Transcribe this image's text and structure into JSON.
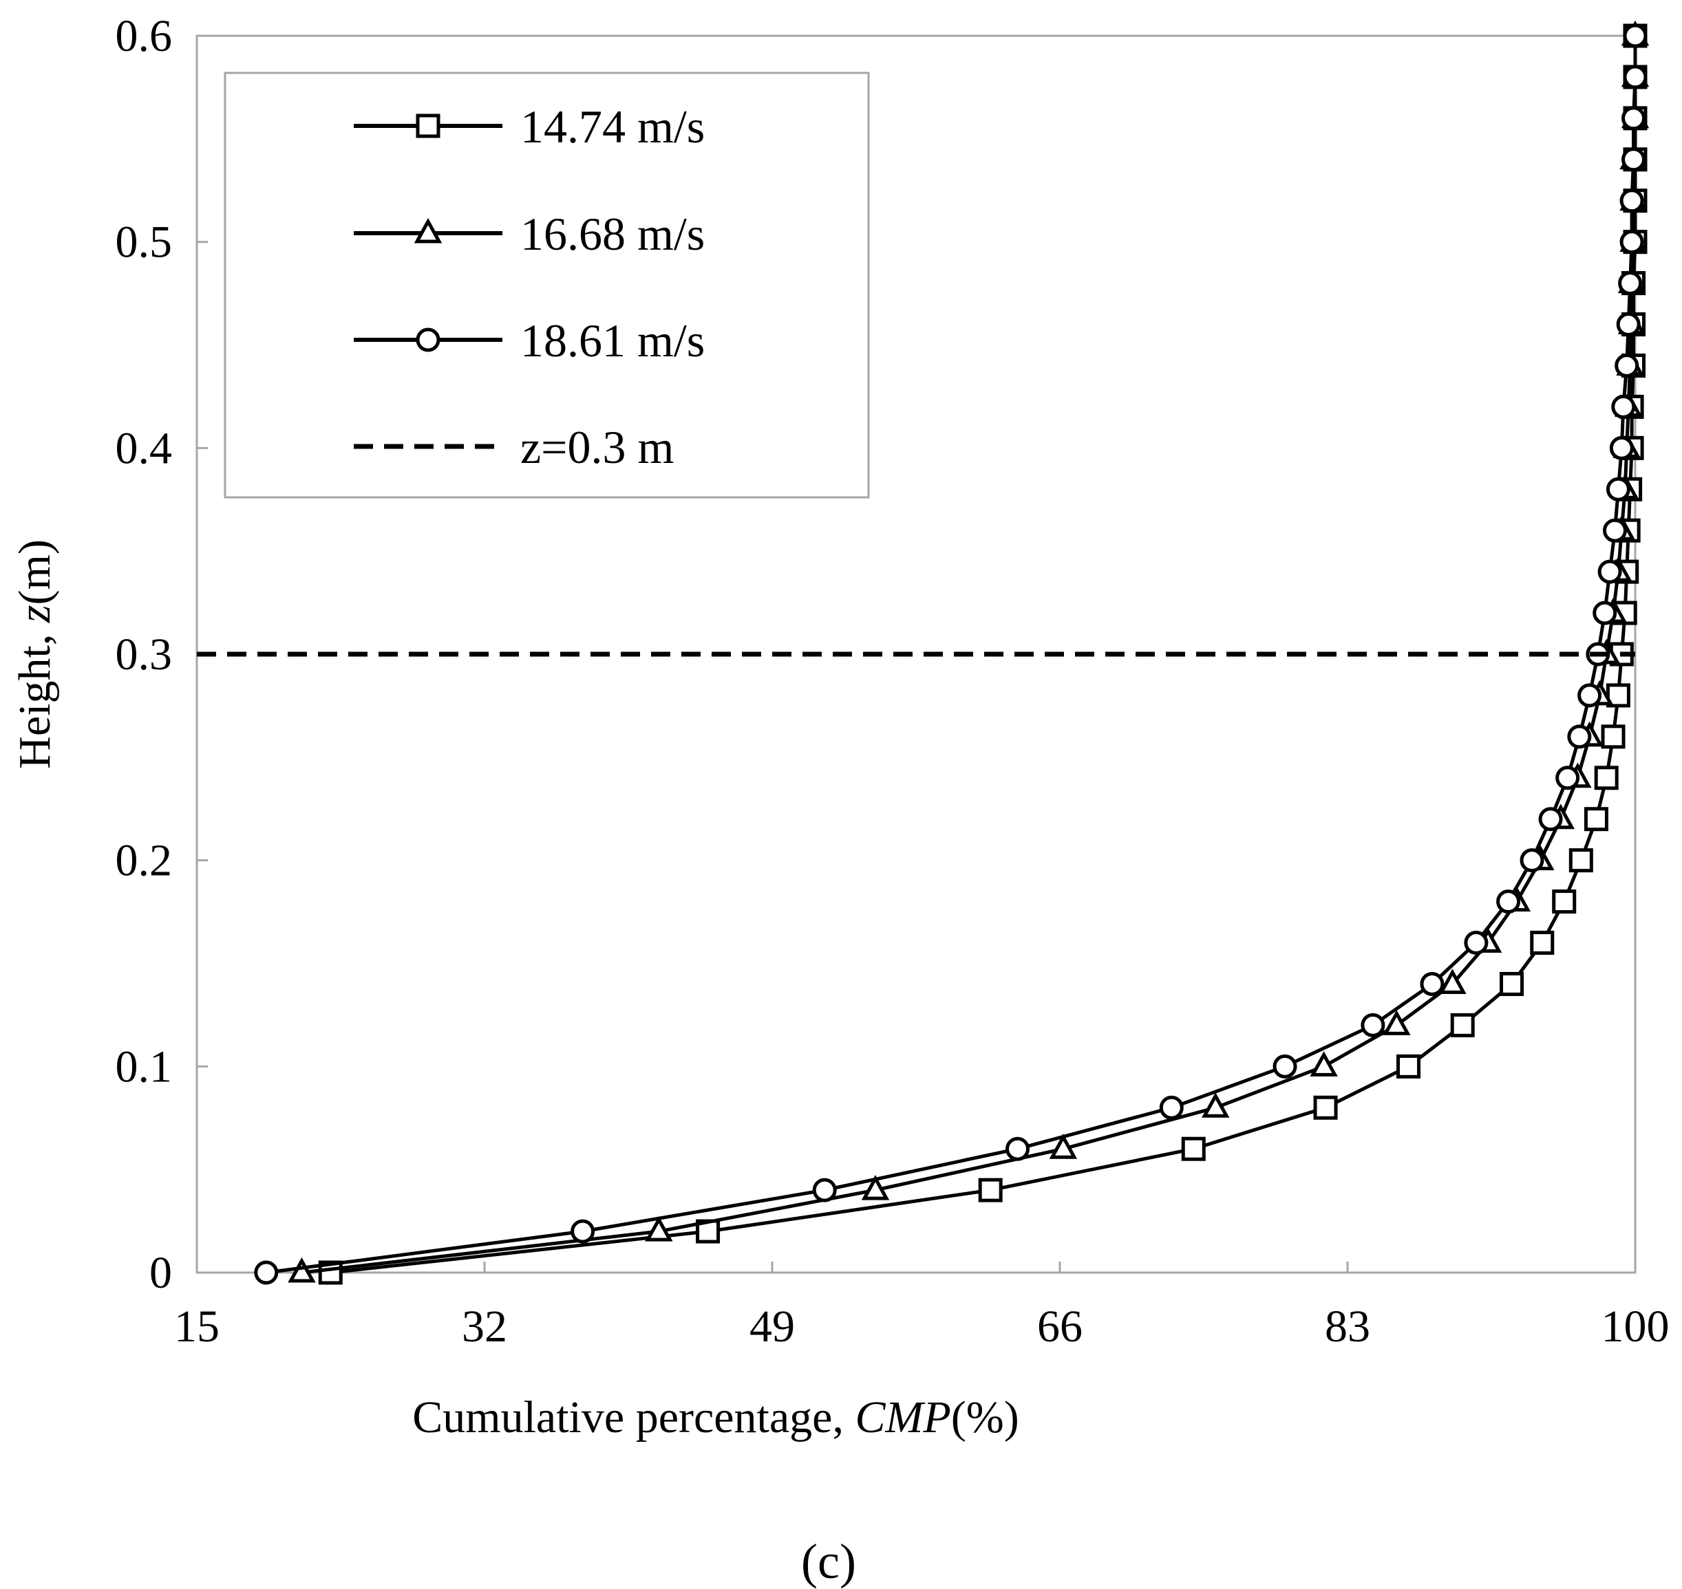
{
  "chart_data": {
    "type": "line",
    "title": "",
    "panel_label": "(c)",
    "xlabel": {
      "prefix": "Cumulative percentage, ",
      "symbol": "CMP",
      "suffix": "(%)"
    },
    "ylabel": {
      "prefix": "Height, ",
      "symbol": "z",
      "suffix": "(m)"
    },
    "xlim": [
      15,
      100
    ],
    "ylim": [
      0,
      0.6
    ],
    "xticks": [
      "15",
      "32",
      "49",
      "66",
      "83",
      "100"
    ],
    "yticks": [
      "0",
      "0.1",
      "0.2",
      "0.3",
      "0.4",
      "0.5",
      "0.6"
    ],
    "grid": false,
    "legend_position": "top-left",
    "series": [
      {
        "name": "14.74 m/s",
        "marker": "square",
        "color": "#000000",
        "x": [
          22.9,
          45.2,
          61.9,
          73.9,
          81.7,
          86.6,
          89.8,
          92.7,
          94.5,
          95.8,
          96.8,
          97.7,
          98.3,
          98.7,
          99.0,
          99.2,
          99.4,
          99.5,
          99.6,
          99.7,
          99.8,
          99.8,
          99.9,
          99.9,
          99.9,
          100.0,
          100.0,
          100.0,
          100.0,
          100.0,
          100.0
        ],
        "y": [
          0.0,
          0.02,
          0.04,
          0.06,
          0.08,
          0.1,
          0.12,
          0.14,
          0.16,
          0.18,
          0.2,
          0.22,
          0.24,
          0.26,
          0.28,
          0.3,
          0.32,
          0.34,
          0.36,
          0.38,
          0.4,
          0.42,
          0.44,
          0.46,
          0.48,
          0.5,
          0.52,
          0.54,
          0.56,
          0.58,
          0.6
        ]
      },
      {
        "name": "16.68 m/s",
        "marker": "triangle",
        "color": "#000000",
        "x": [
          21.2,
          42.3,
          55.1,
          66.2,
          75.2,
          81.6,
          85.9,
          89.2,
          91.3,
          93.0,
          94.4,
          95.6,
          96.6,
          97.3,
          97.9,
          98.3,
          98.7,
          99.0,
          99.2,
          99.4,
          99.5,
          99.6,
          99.7,
          99.8,
          99.8,
          99.9,
          99.9,
          99.9,
          100.0,
          100.0,
          100.0
        ],
        "y": [
          0.0,
          0.02,
          0.04,
          0.06,
          0.08,
          0.1,
          0.12,
          0.14,
          0.16,
          0.18,
          0.2,
          0.22,
          0.24,
          0.26,
          0.28,
          0.3,
          0.32,
          0.34,
          0.36,
          0.38,
          0.4,
          0.42,
          0.44,
          0.46,
          0.48,
          0.5,
          0.52,
          0.54,
          0.56,
          0.58,
          0.6
        ]
      },
      {
        "name": "18.61 m/s",
        "marker": "circle",
        "color": "#000000",
        "x": [
          19.1,
          37.8,
          52.1,
          63.5,
          72.6,
          79.3,
          84.5,
          88.0,
          90.6,
          92.5,
          93.9,
          95.0,
          96.0,
          96.7,
          97.3,
          97.8,
          98.2,
          98.5,
          98.8,
          99.0,
          99.2,
          99.3,
          99.5,
          99.6,
          99.7,
          99.8,
          99.8,
          99.9,
          99.9,
          100.0,
          100.0
        ],
        "y": [
          0.0,
          0.02,
          0.04,
          0.06,
          0.08,
          0.1,
          0.12,
          0.14,
          0.16,
          0.18,
          0.2,
          0.22,
          0.24,
          0.26,
          0.28,
          0.3,
          0.32,
          0.34,
          0.36,
          0.38,
          0.4,
          0.42,
          0.44,
          0.46,
          0.48,
          0.5,
          0.52,
          0.54,
          0.56,
          0.58,
          0.6
        ]
      }
    ],
    "reference_line": {
      "name": "z=0.3 m",
      "orientation": "horizontal",
      "y": 0.3,
      "style": "dashed",
      "color": "#000000"
    }
  }
}
